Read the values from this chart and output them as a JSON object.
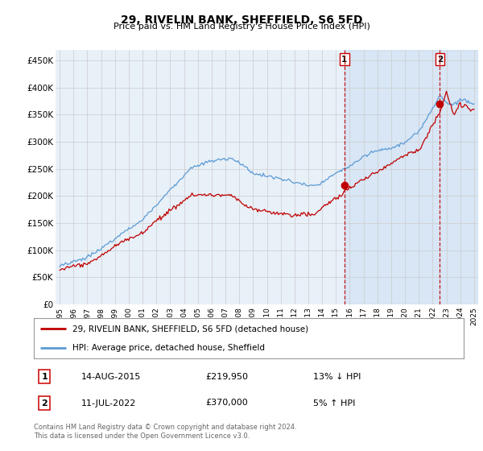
{
  "title": "29, RIVELIN BANK, SHEFFIELD, S6 5FD",
  "subtitle": "Price paid vs. HM Land Registry's House Price Index (HPI)",
  "ylabel_ticks": [
    "£0",
    "£50K",
    "£100K",
    "£150K",
    "£200K",
    "£250K",
    "£300K",
    "£350K",
    "£400K",
    "£450K"
  ],
  "ytick_vals": [
    0,
    50000,
    100000,
    150000,
    200000,
    250000,
    300000,
    350000,
    400000,
    450000
  ],
  "ylim": [
    0,
    470000
  ],
  "xlim_start": 1994.7,
  "xlim_end": 2025.3,
  "xtick_labels": [
    "1995",
    "1996",
    "1997",
    "1998",
    "1999",
    "2000",
    "2001",
    "2002",
    "2003",
    "2004",
    "2005",
    "2006",
    "2007",
    "2008",
    "2009",
    "2010",
    "2011",
    "2012",
    "2013",
    "2014",
    "2015",
    "2016",
    "2017",
    "2018",
    "2019",
    "2020",
    "2021",
    "2022",
    "2023",
    "2024",
    "2025"
  ],
  "transaction1_x": 2015.619,
  "transaction1_y": 219950,
  "transaction2_x": 2022.53,
  "transaction2_y": 370000,
  "vline1_x": 2015.619,
  "vline2_x": 2022.53,
  "legend_line1": "29, RIVELIN BANK, SHEFFIELD, S6 5FD (detached house)",
  "legend_line2": "HPI: Average price, detached house, Sheffield",
  "table_row1": [
    "1",
    "14-AUG-2015",
    "£219,950",
    "13% ↓ HPI"
  ],
  "table_row2": [
    "2",
    "11-JUL-2022",
    "£370,000",
    "5% ↑ HPI"
  ],
  "footer": "Contains HM Land Registry data © Crown copyright and database right 2024.\nThis data is licensed under the Open Government Licence v3.0.",
  "hpi_color": "#5b9bd5",
  "price_color": "#c00000",
  "vline_color": "#c00000",
  "dot_color": "#c00000",
  "shade_color": "#ddeeff",
  "background_color": "#ffffff",
  "grid_color": "#cccccc"
}
